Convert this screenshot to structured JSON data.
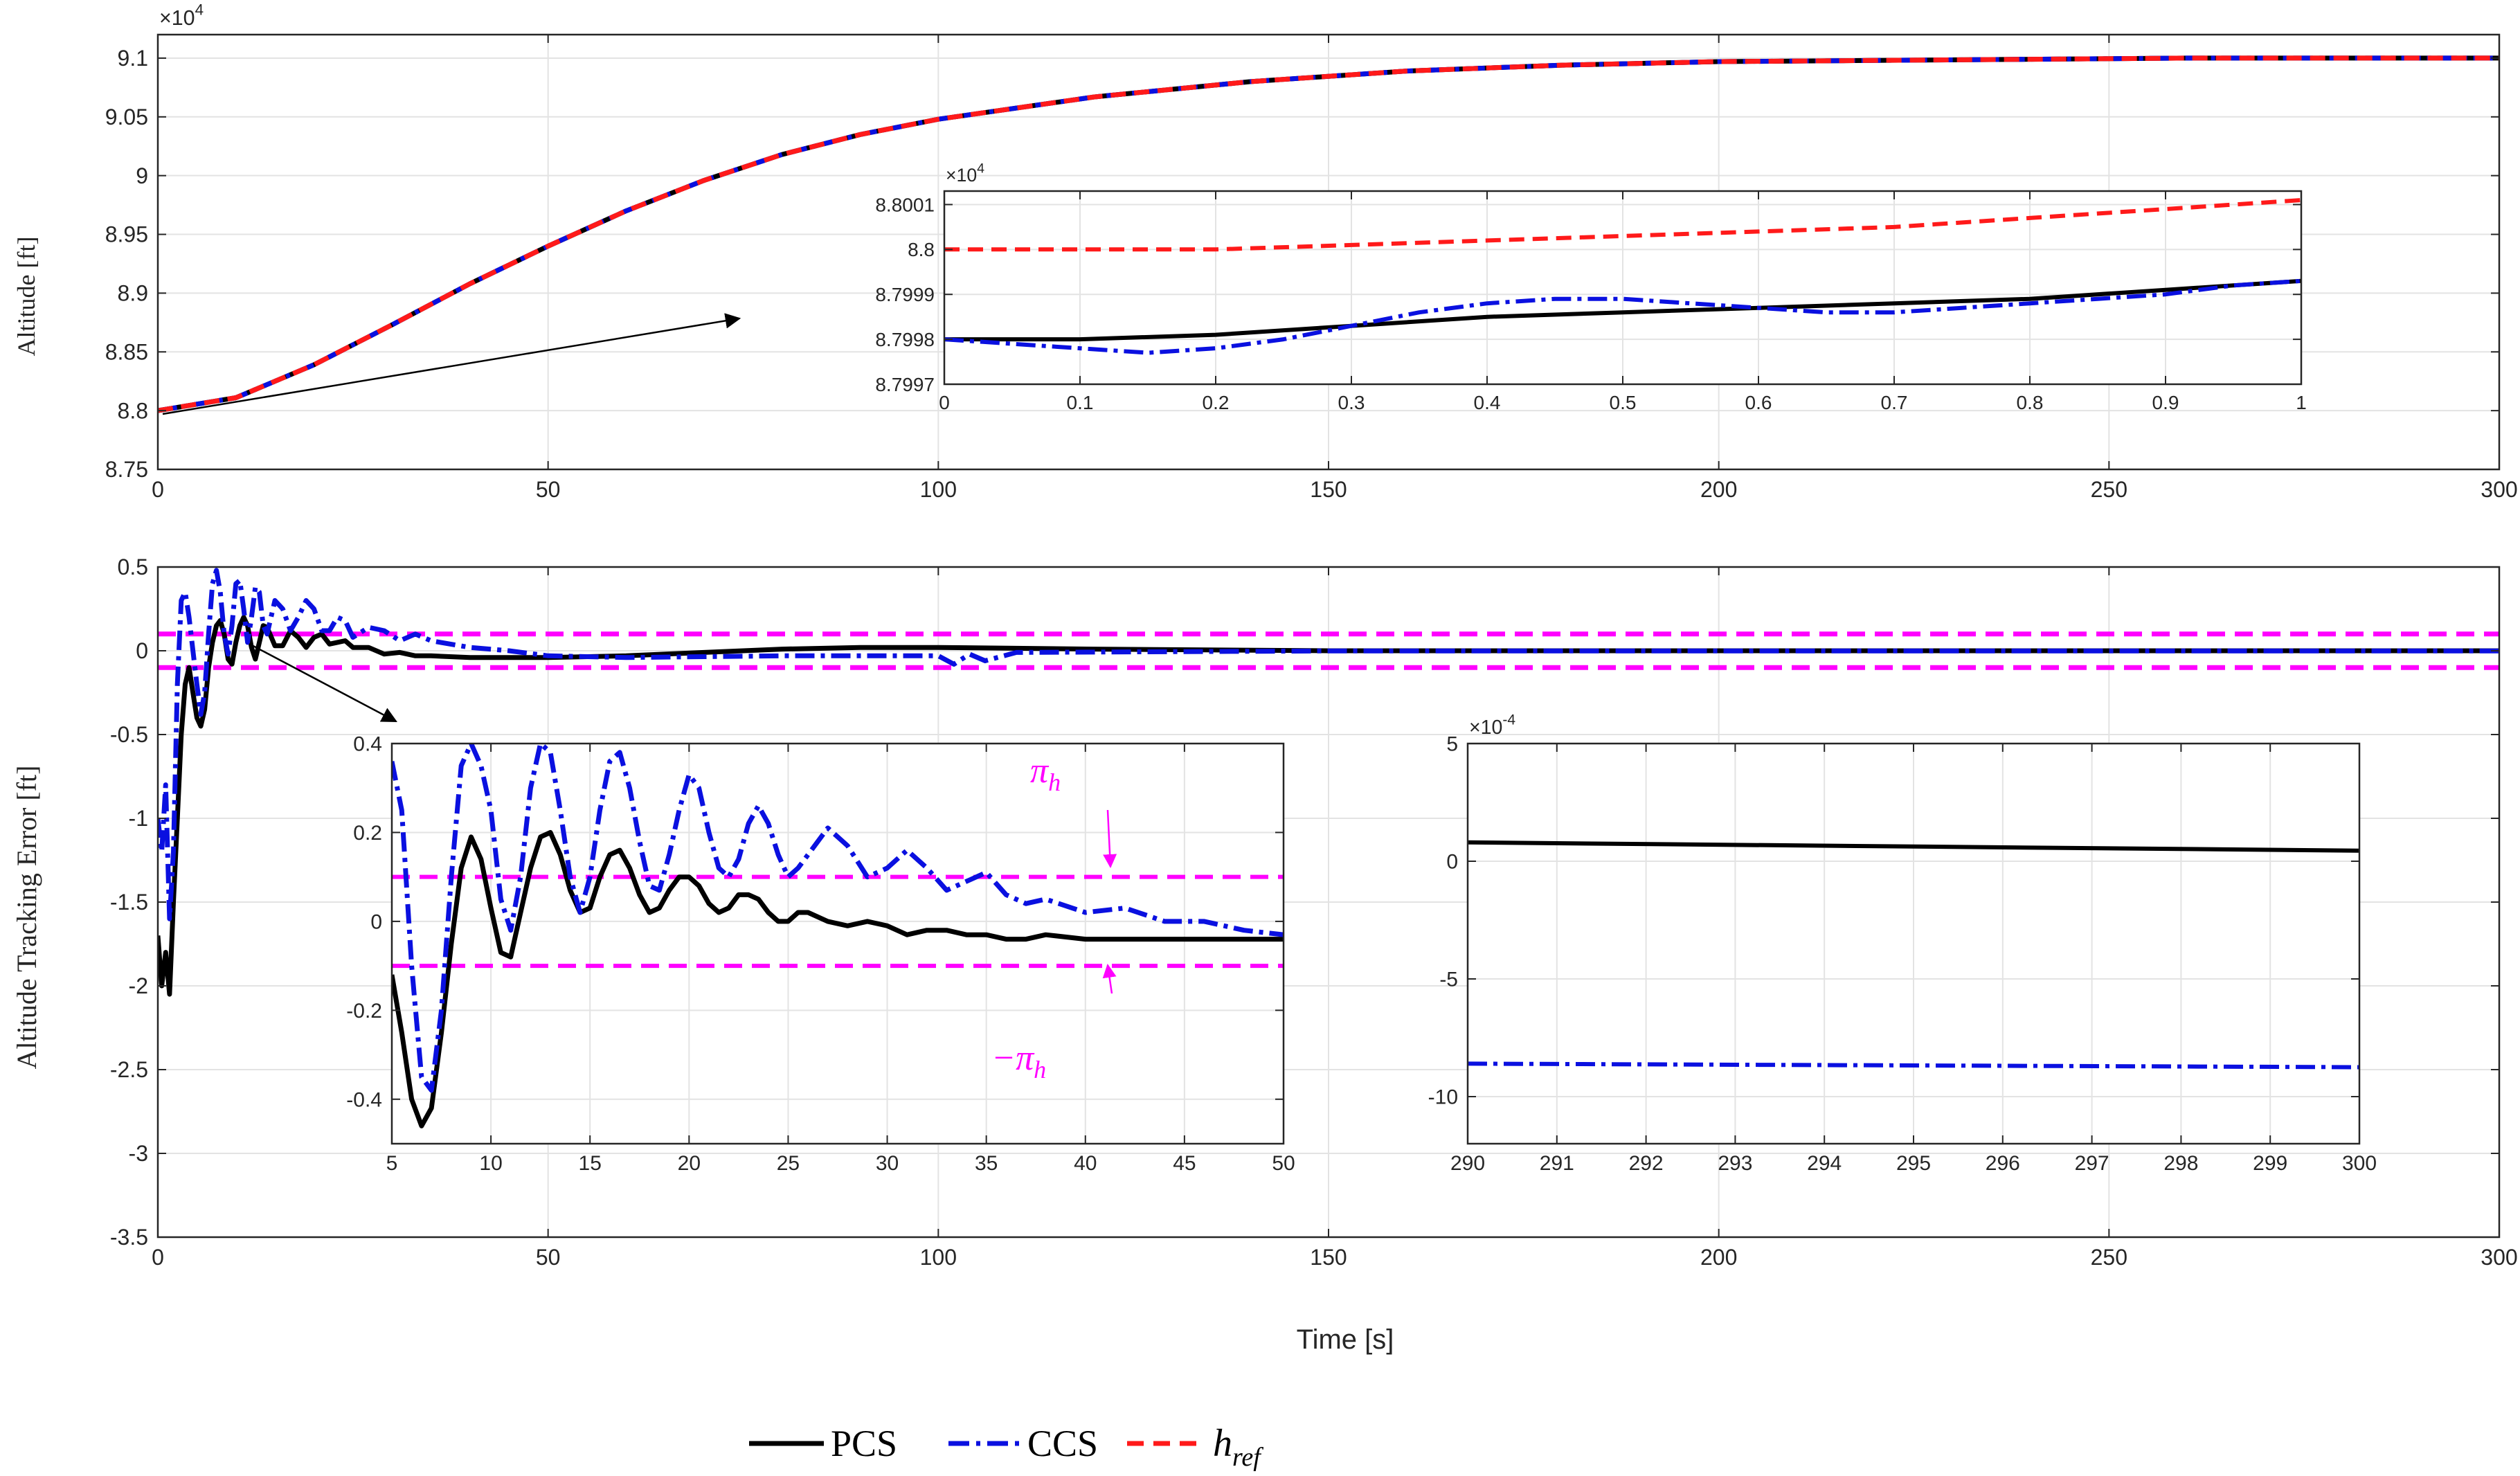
{
  "figure": {
    "xlabel": "Time [s]",
    "legend": [
      "PCS",
      "CCS",
      "h_ref"
    ],
    "legend_label_parts": {
      "h": "h",
      "sub": "ref"
    },
    "colors": {
      "PCS": "#000000",
      "CCS": "#0a10e0",
      "ref": "#ff1a1a",
      "bound": "#ff00ff",
      "grid": "#e3e3e3",
      "axis": "#262626"
    }
  },
  "chart_data": [
    {
      "id": "top",
      "type": "line",
      "title": "",
      "ylabel": "Altitude [ft]",
      "xlabel": "",
      "xlim": [
        0,
        300
      ],
      "ylim": [
        8.75,
        9.12
      ],
      "xticks": [
        0,
        50,
        100,
        150,
        200,
        250,
        300
      ],
      "yticks": [
        8.75,
        8.8,
        8.85,
        8.9,
        8.95,
        9.0,
        9.05,
        9.1
      ],
      "ytick_labels": [
        "8.75",
        "8.8",
        "8.85",
        "8.9",
        "8.95",
        "9",
        "9.05",
        "9.1"
      ],
      "y_exponent": "4",
      "grid": true,
      "series": [
        {
          "name": "PCS",
          "style": "solid",
          "x": [
            0,
            10,
            20,
            30,
            40,
            50,
            60,
            70,
            80,
            90,
            100,
            120,
            140,
            160,
            180,
            200,
            220,
            240,
            260,
            280,
            300
          ],
          "y": [
            8.8,
            8.811,
            8.839,
            8.873,
            8.908,
            8.94,
            8.97,
            8.996,
            9.018,
            9.035,
            9.048,
            9.067,
            9.08,
            9.089,
            9.094,
            9.097,
            9.098,
            9.099,
            9.1,
            9.1,
            9.1
          ]
        },
        {
          "name": "CCS",
          "style": "dashdot",
          "x": [
            0,
            10,
            20,
            30,
            40,
            50,
            60,
            70,
            80,
            90,
            100,
            120,
            140,
            160,
            180,
            200,
            220,
            240,
            260,
            280,
            300
          ],
          "y": [
            8.8,
            8.811,
            8.839,
            8.873,
            8.908,
            8.94,
            8.97,
            8.996,
            9.018,
            9.035,
            9.048,
            9.067,
            9.08,
            9.089,
            9.094,
            9.097,
            9.098,
            9.099,
            9.1,
            9.1,
            9.1
          ]
        },
        {
          "name": "h_ref",
          "style": "dashed",
          "x": [
            0,
            10,
            20,
            30,
            40,
            50,
            60,
            70,
            80,
            90,
            100,
            120,
            140,
            160,
            180,
            200,
            220,
            240,
            260,
            280,
            300
          ],
          "y": [
            8.8,
            8.811,
            8.839,
            8.873,
            8.908,
            8.94,
            8.97,
            8.996,
            9.018,
            9.035,
            9.048,
            9.067,
            9.08,
            9.089,
            9.094,
            9.097,
            9.098,
            9.099,
            9.1,
            9.1,
            9.1
          ]
        }
      ]
    },
    {
      "id": "top-inset",
      "type": "line",
      "xlim": [
        0,
        1
      ],
      "ylim": [
        8.7997,
        8.80013
      ],
      "xticks": [
        0,
        0.1,
        0.2,
        0.3,
        0.4,
        0.5,
        0.6,
        0.7,
        0.8,
        0.9,
        1
      ],
      "xtick_labels": [
        "0",
        "0.1",
        "0.2",
        "0.3",
        "0.4",
        "0.5",
        "0.6",
        "0.7",
        "0.8",
        "0.9",
        "1"
      ],
      "yticks": [
        8.7997,
        8.7998,
        8.7999,
        8.8,
        8.8001
      ],
      "ytick_labels": [
        "8.7997",
        "8.7998",
        "8.7999",
        "8.8",
        "8.8001"
      ],
      "y_exponent": "4",
      "grid": true,
      "series": [
        {
          "name": "PCS",
          "style": "solid",
          "x": [
            0,
            0.1,
            0.2,
            0.3,
            0.4,
            0.5,
            0.6,
            0.7,
            0.8,
            0.9,
            1
          ],
          "y": [
            8.7998,
            8.7998,
            8.79981,
            8.79983,
            8.79985,
            8.79986,
            8.79987,
            8.79988,
            8.79989,
            8.79991,
            8.79993
          ]
        },
        {
          "name": "CCS",
          "style": "dashdot",
          "x": [
            0,
            0.05,
            0.1,
            0.15,
            0.2,
            0.25,
            0.3,
            0.35,
            0.4,
            0.45,
            0.5,
            0.55,
            0.6,
            0.65,
            0.7,
            0.75,
            0.8,
            0.85,
            0.9,
            0.95,
            1
          ],
          "y": [
            8.7998,
            8.79979,
            8.79978,
            8.79977,
            8.79978,
            8.7998,
            8.79983,
            8.79986,
            8.79988,
            8.79989,
            8.79989,
            8.79988,
            8.79987,
            8.79986,
            8.79986,
            8.79987,
            8.79988,
            8.79989,
            8.7999,
            8.79992,
            8.79993
          ]
        },
        {
          "name": "h_ref",
          "style": "dashed",
          "x": [
            0,
            0.1,
            0.2,
            0.3,
            0.4,
            0.5,
            0.6,
            0.7,
            0.8,
            0.9,
            1
          ],
          "y": [
            8.8,
            8.8,
            8.8,
            8.80001,
            8.80002,
            8.80003,
            8.80004,
            8.80005,
            8.80007,
            8.80009,
            8.80011
          ]
        }
      ]
    },
    {
      "id": "bottom",
      "type": "line",
      "ylabel": "Altitude Tracking Error [ft]",
      "xlabel": "Time [s]",
      "xlim": [
        0,
        300
      ],
      "ylim": [
        -3.5,
        0.5
      ],
      "xticks": [
        0,
        50,
        100,
        150,
        200,
        250,
        300
      ],
      "yticks": [
        -3.5,
        -3,
        -2.5,
        -2,
        -1.5,
        -1,
        -0.5,
        0,
        0.5
      ],
      "ytick_labels": [
        "-3.5",
        "-3",
        "-2.5",
        "-2",
        "-1.5",
        "-1",
        "-0.5",
        "0",
        "0.5"
      ],
      "grid": true,
      "bounds": [
        0.1,
        -0.1
      ],
      "series": [
        {
          "name": "PCS",
          "style": "solid",
          "x": [
            0,
            0.5,
            1,
            1.5,
            2,
            2.5,
            3,
            3.5,
            4,
            4.5,
            5,
            5.5,
            6,
            6.5,
            7,
            7.5,
            8,
            8.5,
            9,
            9.5,
            10,
            10.5,
            11,
            11.5,
            12,
            12.5,
            13,
            13.5,
            14,
            15,
            16,
            17,
            18,
            19,
            20,
            21,
            22,
            23,
            24,
            25,
            27,
            29,
            31,
            33,
            35,
            40,
            45,
            50,
            60,
            70,
            80,
            90,
            100,
            120,
            150,
            200,
            250,
            300
          ],
          "y": [
            -1.7,
            -2.0,
            -1.8,
            -2.05,
            -1.5,
            -1.0,
            -0.5,
            -0.2,
            -0.1,
            -0.25,
            -0.4,
            -0.45,
            -0.35,
            -0.1,
            0.05,
            0.15,
            0.18,
            0.1,
            -0.05,
            -0.08,
            0.05,
            0.15,
            0.2,
            0.15,
            0.02,
            -0.05,
            0.05,
            0.15,
            0.14,
            0.03,
            0.03,
            0.12,
            0.08,
            0.02,
            0.08,
            0.1,
            0.04,
            0.05,
            0.06,
            0.02,
            0.02,
            -0.02,
            -0.01,
            -0.03,
            -0.03,
            -0.04,
            -0.04,
            -0.04,
            -0.03,
            -0.01,
            0.01,
            0.02,
            0.02,
            0.01,
            0.0,
            0.0,
            0.0,
            0.0
          ]
        },
        {
          "name": "CCS",
          "style": "dashdot",
          "x": [
            0,
            0.5,
            1,
            1.5,
            2,
            2.5,
            3,
            3.5,
            4,
            4.5,
            5,
            5.5,
            6,
            6.5,
            7,
            7.5,
            8,
            8.5,
            9,
            9.5,
            10,
            10.5,
            11,
            11.5,
            12,
            12.5,
            13,
            13.5,
            14,
            15,
            16,
            17,
            18,
            19,
            20,
            21,
            22,
            23,
            24,
            25,
            27,
            29,
            31,
            33,
            35,
            40,
            45,
            50,
            60,
            80,
            100,
            102,
            104,
            106,
            110,
            150,
            200,
            250,
            300
          ],
          "y": [
            -1.0,
            -1.2,
            -0.8,
            -1.6,
            -1.2,
            -0.2,
            0.3,
            0.35,
            0.2,
            0.0,
            -0.2,
            -0.38,
            -0.25,
            0.1,
            0.4,
            0.48,
            0.35,
            0.1,
            -0.02,
            0.15,
            0.4,
            0.42,
            0.25,
            0.05,
            0.2,
            0.38,
            0.35,
            0.15,
            0.1,
            0.3,
            0.25,
            0.12,
            0.2,
            0.3,
            0.25,
            0.12,
            0.12,
            0.2,
            0.18,
            0.08,
            0.14,
            0.12,
            0.06,
            0.1,
            0.06,
            0.02,
            0.0,
            -0.03,
            -0.04,
            -0.03,
            -0.03,
            -0.08,
            -0.02,
            -0.06,
            -0.01,
            -0.001,
            -0.001,
            -0.001,
            -0.001
          ]
        }
      ]
    },
    {
      "id": "bottom-inset-left",
      "type": "line",
      "xlim": [
        5,
        50
      ],
      "ylim": [
        -0.5,
        0.4
      ],
      "xticks": [
        5,
        10,
        15,
        20,
        25,
        30,
        35,
        40,
        45,
        50
      ],
      "xtick_labels": [
        "5",
        "10",
        "15",
        "20",
        "25",
        "30",
        "35",
        "40",
        "45",
        "50"
      ],
      "yticks": [
        -0.4,
        -0.2,
        0,
        0.2,
        0.4
      ],
      "ytick_labels": [
        "-0.4",
        "-0.2",
        "0",
        "0.2",
        "0.4"
      ],
      "grid": true,
      "bounds": [
        0.1,
        -0.1
      ],
      "annotations": {
        "upper": "π",
        "lower": "−π",
        "sub": "h"
      },
      "series": [
        {
          "name": "PCS",
          "style": "solid",
          "x": [
            5,
            5.5,
            6,
            6.5,
            7,
            7.5,
            8,
            8.5,
            9,
            9.5,
            10,
            10.5,
            11,
            11.5,
            12,
            12.5,
            13,
            13.5,
            14,
            14.5,
            15,
            15.5,
            16,
            16.5,
            17,
            17.5,
            18,
            18.5,
            19,
            19.5,
            20,
            20.5,
            21,
            21.5,
            22,
            22.5,
            23,
            23.5,
            24,
            24.5,
            25,
            25.5,
            26,
            27,
            28,
            29,
            30,
            31,
            32,
            33,
            34,
            35,
            36,
            37,
            38,
            40,
            42,
            44,
            46,
            48,
            50
          ],
          "y": [
            -0.12,
            -0.25,
            -0.4,
            -0.46,
            -0.42,
            -0.25,
            -0.05,
            0.12,
            0.19,
            0.14,
            0.03,
            -0.07,
            -0.08,
            0.02,
            0.12,
            0.19,
            0.2,
            0.15,
            0.07,
            0.02,
            0.03,
            0.1,
            0.15,
            0.16,
            0.12,
            0.06,
            0.02,
            0.03,
            0.07,
            0.1,
            0.1,
            0.08,
            0.04,
            0.02,
            0.03,
            0.06,
            0.06,
            0.05,
            0.02,
            0.0,
            0.0,
            0.02,
            0.02,
            0.0,
            -0.01,
            0.0,
            -0.01,
            -0.03,
            -0.02,
            -0.02,
            -0.03,
            -0.03,
            -0.04,
            -0.04,
            -0.03,
            -0.04,
            -0.04,
            -0.04,
            -0.04,
            -0.04,
            -0.04
          ]
        },
        {
          "name": "CCS",
          "style": "dashdot",
          "x": [
            5,
            5.5,
            6,
            6.5,
            7,
            7.5,
            8,
            8.5,
            9,
            9.5,
            10,
            10.5,
            11,
            11.5,
            12,
            12.5,
            13,
            13.5,
            14,
            14.5,
            15,
            15.5,
            16,
            16.5,
            17,
            17.5,
            18,
            18.5,
            19,
            19.5,
            20,
            20.5,
            21,
            21.5,
            22,
            22.5,
            23,
            23.5,
            24,
            24.5,
            25,
            25.5,
            26,
            27,
            28,
            29,
            30,
            31,
            32,
            33,
            34,
            35,
            36,
            37,
            38,
            40,
            42,
            44,
            46,
            48,
            50
          ],
          "y": [
            0.36,
            0.25,
            -0.1,
            -0.35,
            -0.38,
            -0.2,
            0.1,
            0.35,
            0.4,
            0.35,
            0.25,
            0.05,
            -0.02,
            0.1,
            0.3,
            0.4,
            0.38,
            0.25,
            0.1,
            0.02,
            0.1,
            0.25,
            0.36,
            0.38,
            0.3,
            0.18,
            0.08,
            0.07,
            0.15,
            0.25,
            0.33,
            0.3,
            0.2,
            0.12,
            0.1,
            0.14,
            0.22,
            0.26,
            0.22,
            0.15,
            0.1,
            0.12,
            0.15,
            0.21,
            0.17,
            0.1,
            0.12,
            0.16,
            0.12,
            0.07,
            0.09,
            0.11,
            0.06,
            0.04,
            0.05,
            0.02,
            0.03,
            0.0,
            0.0,
            -0.02,
            -0.03
          ]
        }
      ]
    },
    {
      "id": "bottom-inset-right",
      "type": "line",
      "xlim": [
        290,
        300
      ],
      "ylim": [
        -12,
        5
      ],
      "xticks": [
        290,
        291,
        292,
        293,
        294,
        295,
        296,
        297,
        298,
        299,
        300
      ],
      "xtick_labels": [
        "290",
        "291",
        "292",
        "293",
        "294",
        "295",
        "296",
        "297",
        "298",
        "299",
        "300"
      ],
      "yticks": [
        -10,
        -5,
        0,
        5
      ],
      "ytick_labels": [
        "-10",
        "-5",
        "0",
        "5"
      ],
      "y_exponent": "-4",
      "grid": true,
      "series": [
        {
          "name": "PCS",
          "style": "solid",
          "x": [
            290,
            300
          ],
          "y": [
            0.8,
            0.45
          ]
        },
        {
          "name": "CCS",
          "style": "dashdot",
          "x": [
            290,
            300
          ],
          "y": [
            -8.6,
            -8.75
          ]
        }
      ]
    }
  ]
}
